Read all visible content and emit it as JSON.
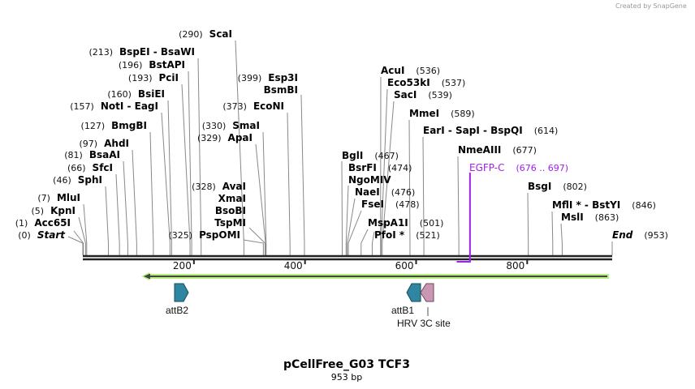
{
  "credit": "Created by SnapGene",
  "title": "pCellFree_G03 TCF3",
  "length_label": "953 bp",
  "total_bp": 953,
  "ruler_ticks": [
    "200",
    "400",
    "600",
    "800"
  ],
  "enzymes": [
    {
      "name": "ScaI",
      "pos": "(290)",
      "bp": 290
    },
    {
      "name": "BspEI  - BsaWI",
      "pos": "(213)",
      "bp": 213
    },
    {
      "name": "BstAPI",
      "pos": "(196)",
      "bp": 196
    },
    {
      "name": "PciI",
      "pos": "(193)",
      "bp": 193
    },
    {
      "name": "BsiEI",
      "pos": "(160)",
      "bp": 160
    },
    {
      "name": "NotI  - EagI",
      "pos": "(157)",
      "bp": 157
    },
    {
      "name": "BmgBI",
      "pos": "(127)",
      "bp": 127
    },
    {
      "name": "AhdI",
      "pos": "(97)",
      "bp": 97
    },
    {
      "name": "BsaAI",
      "pos": "(81)",
      "bp": 81
    },
    {
      "name": "SfcI",
      "pos": "(66)",
      "bp": 66
    },
    {
      "name": "SphI",
      "pos": "(46)",
      "bp": 46
    },
    {
      "name": "MluI",
      "pos": "(7)",
      "bp": 7
    },
    {
      "name": "KpnI",
      "pos": "(5)",
      "bp": 5
    },
    {
      "name": "Acc65I",
      "pos": "(1)",
      "bp": 1
    },
    {
      "name": "Start",
      "pos": "(0)",
      "bp": 0,
      "italic": true
    },
    {
      "name": "Esp3I",
      "pos": "(399)",
      "bp": 399
    },
    {
      "name": "BsmBI",
      "pos": "",
      "bp": 399
    },
    {
      "name": "EcoNI",
      "pos": "(373)",
      "bp": 373
    },
    {
      "name": "SmaI",
      "pos": "(330)",
      "bp": 330
    },
    {
      "name": "ApaI",
      "pos": "(329)",
      "bp": 329
    },
    {
      "name": "AvaI",
      "pos": "(328)",
      "bp": 328
    },
    {
      "name": "XmaI",
      "pos": "",
      "bp": 328
    },
    {
      "name": "BsoBI",
      "pos": "",
      "bp": 328
    },
    {
      "name": "TspMI",
      "pos": "",
      "bp": 328
    },
    {
      "name": "PspOMI",
      "pos": "(325)",
      "bp": 325
    },
    {
      "name": "AcuI",
      "pos": "(536)",
      "bp": 536
    },
    {
      "name": "Eco53kI",
      "pos": "(537)",
      "bp": 537
    },
    {
      "name": "SacI",
      "pos": "(539)",
      "bp": 539
    },
    {
      "name": "MmeI",
      "pos": "(589)",
      "bp": 589
    },
    {
      "name": "EarI  - SapI  - BspQI",
      "pos": "(614)",
      "bp": 614
    },
    {
      "name": "NmeAIII",
      "pos": "(677)",
      "bp": 677
    },
    {
      "name": "BsgI",
      "pos": "(802)",
      "bp": 802
    },
    {
      "name": "MflI *  - BstYI",
      "pos": "(846)",
      "bp": 846
    },
    {
      "name": "MslI",
      "pos": "(863)",
      "bp": 863
    },
    {
      "name": "End",
      "pos": "(953)",
      "bp": 953,
      "italic": true
    },
    {
      "name": "BglI",
      "pos": "(467)",
      "bp": 467
    },
    {
      "name": "BsrFI",
      "pos": "(474)",
      "bp": 474
    },
    {
      "name": "NgoMIV",
      "pos": "",
      "bp": 474
    },
    {
      "name": "NaeI",
      "pos": "(476)",
      "bp": 476
    },
    {
      "name": "FseI",
      "pos": "(478)",
      "bp": 478
    },
    {
      "name": "MspA1I",
      "pos": "(501)",
      "bp": 501
    },
    {
      "name": "PfoI *",
      "pos": "(521)",
      "bp": 521
    }
  ],
  "primer": {
    "name": "EGFP-C",
    "range": "(676 .. 697)",
    "start": 676,
    "end": 697,
    "color": "#a020f0"
  },
  "features": [
    {
      "name": "attB2",
      "color": "#2e86a0"
    },
    {
      "name": "attB1",
      "color": "#2e86a0"
    },
    {
      "name": "HRV 3C site",
      "color": "#c997b4"
    }
  ],
  "orf_color": "#b7f07a"
}
